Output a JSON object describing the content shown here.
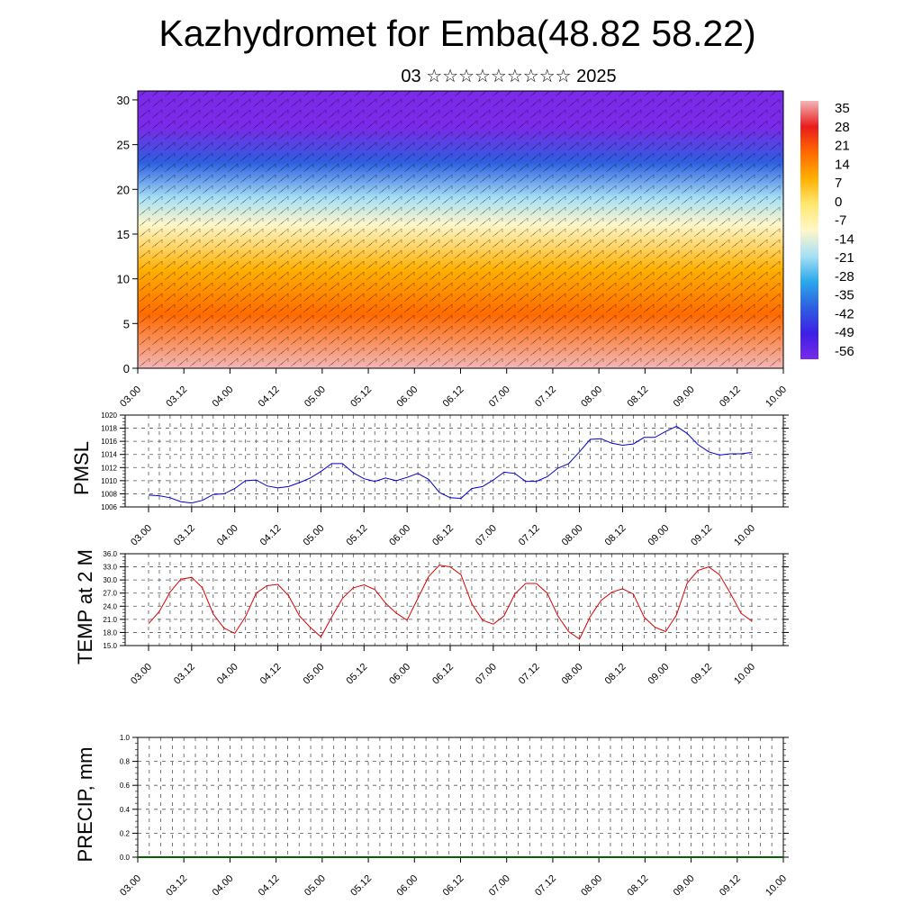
{
  "page": {
    "title": "Kazhydromet for Emba(48.82 58.22)",
    "subtitle": "03 ☆☆☆☆☆☆☆☆☆ 2025"
  },
  "chart_data": [
    {
      "type": "heatmap",
      "id": "profile",
      "xlabel": "",
      "ylabel": "",
      "x_tick_labels": [
        "03.00",
        "03.12",
        "04.00",
        "04.12",
        "05.00",
        "05.12",
        "06.00",
        "06.12",
        "07.00",
        "07.12",
        "08.00",
        "08.12",
        "09.00",
        "09.12",
        "10.00"
      ],
      "y_range": [
        0,
        31
      ],
      "y_ticks": [
        0,
        5,
        10,
        15,
        20,
        25,
        30
      ],
      "colorbar": {
        "labels": [
          "35",
          "28",
          "21",
          "14",
          "7",
          "0",
          "-7",
          "-14",
          "-21",
          "-28",
          "-35",
          "-42",
          "-49",
          "-56"
        ],
        "stops": [
          "#f3b6b6",
          "#e91c1c",
          "#ff6a00",
          "#ffb000",
          "#ffe870",
          "#fff7c8",
          "#a8e0f5",
          "#2aa8ea",
          "#2e5fe0",
          "#3d20e6",
          "#7a2ae8"
        ]
      },
      "vertical_gradient": [
        {
          "y": 0,
          "value": 35
        },
        {
          "y": 6,
          "value": 21
        },
        {
          "y": 11,
          "value": 7
        },
        {
          "y": 16,
          "value": -7
        },
        {
          "y": 19,
          "value": -21
        },
        {
          "y": 23,
          "value": -42
        },
        {
          "y": 27,
          "value": -56
        },
        {
          "y": 31,
          "value": -56
        }
      ],
      "wind_barbs_note_visible": false
    },
    {
      "type": "line",
      "id": "pmsl",
      "ylabel": "PMSL",
      "ylim": [
        1006,
        1020
      ],
      "y_ticks": [
        1006,
        1008,
        1010,
        1012,
        1014,
        1016,
        1018,
        1020
      ],
      "x_tick_labels": [
        "03.00",
        "03.12",
        "04.00",
        "04.12",
        "05.00",
        "05.12",
        "06.00",
        "06.12",
        "07.00",
        "07.12",
        "08.00",
        "08.12",
        "09.00",
        "09.12",
        "10.00"
      ],
      "series": [
        {
          "color": "#0000cc",
          "values": [
            1007.8,
            1007.7,
            1007.4,
            1006.8,
            1006.6,
            1007.0,
            1007.9,
            1008.0,
            1008.8,
            1010.0,
            1010.1,
            1009.2,
            1008.9,
            1009.1,
            1009.7,
            1010.4,
            1011.4,
            1012.6,
            1012.6,
            1011.2,
            1010.3,
            1009.9,
            1010.4,
            1010.0,
            1010.5,
            1011.1,
            1010.2,
            1008.2,
            1007.4,
            1007.3,
            1008.8,
            1009.1,
            1010.1,
            1011.3,
            1011.1,
            1009.9,
            1009.9,
            1010.6,
            1011.9,
            1012.6,
            1014.4,
            1016.3,
            1016.4,
            1015.7,
            1015.4,
            1015.6,
            1016.6,
            1016.6,
            1017.5,
            1018.3,
            1017.2,
            1015.5,
            1014.4,
            1013.9,
            1014.1,
            1014.1,
            1014.3
          ]
        }
      ]
    },
    {
      "type": "line",
      "id": "temp",
      "ylabel": "TEMP at 2 M",
      "ylim": [
        15,
        36
      ],
      "y_tick_labels": [
        "15.0",
        "18.0",
        "21.0",
        "24.0",
        "27.0",
        "30.0",
        "33.0",
        "36.0"
      ],
      "x_tick_labels": [
        "03.00",
        "03.12",
        "04.00",
        "04.12",
        "05.00",
        "05.12",
        "06.00",
        "06.12",
        "07.00",
        "07.12",
        "08.00",
        "08.12",
        "09.00",
        "09.12",
        "10.00"
      ],
      "series": [
        {
          "color": "#dd0000",
          "values": [
            20.0,
            22.8,
            27.2,
            30.2,
            30.6,
            28.2,
            22.2,
            19.0,
            17.8,
            21.6,
            27.0,
            28.7,
            29.0,
            26.4,
            21.8,
            19.2,
            17.0,
            21.5,
            25.8,
            28.2,
            28.9,
            27.8,
            24.7,
            22.4,
            20.8,
            25.8,
            30.8,
            33.4,
            33.0,
            31.2,
            24.6,
            20.8,
            19.9,
            21.8,
            26.8,
            29.2,
            29.2,
            27.0,
            21.8,
            18.2,
            16.5,
            21.6,
            25.3,
            27.2,
            28.0,
            26.8,
            21.5,
            19.2,
            18.2,
            22.0,
            29.3,
            32.2,
            33.0,
            31.2,
            27.0,
            22.4,
            20.6
          ]
        }
      ]
    },
    {
      "type": "line",
      "id": "precip",
      "ylabel": "PRECIP, mm",
      "ylim": [
        0,
        1
      ],
      "y_tick_labels": [
        "0.0",
        "0.2",
        "0.4",
        "0.6",
        "0.8",
        "1.0"
      ],
      "x_tick_labels": [
        "03.00",
        "03.12",
        "04.00",
        "04.12",
        "05.00",
        "05.12",
        "06.00",
        "06.12",
        "07.00",
        "07.12",
        "08.00",
        "08.12",
        "09.00",
        "09.12",
        "10.00"
      ],
      "series": [
        {
          "color": "#006400",
          "values": [
            0,
            0,
            0,
            0,
            0,
            0,
            0,
            0,
            0,
            0,
            0,
            0,
            0,
            0,
            0,
            0,
            0,
            0,
            0,
            0,
            0,
            0,
            0,
            0,
            0,
            0,
            0,
            0,
            0,
            0,
            0,
            0,
            0,
            0,
            0,
            0,
            0,
            0,
            0,
            0,
            0,
            0,
            0,
            0,
            0,
            0,
            0,
            0,
            0,
            0,
            0,
            0,
            0,
            0,
            0,
            0,
            0
          ]
        }
      ]
    }
  ]
}
